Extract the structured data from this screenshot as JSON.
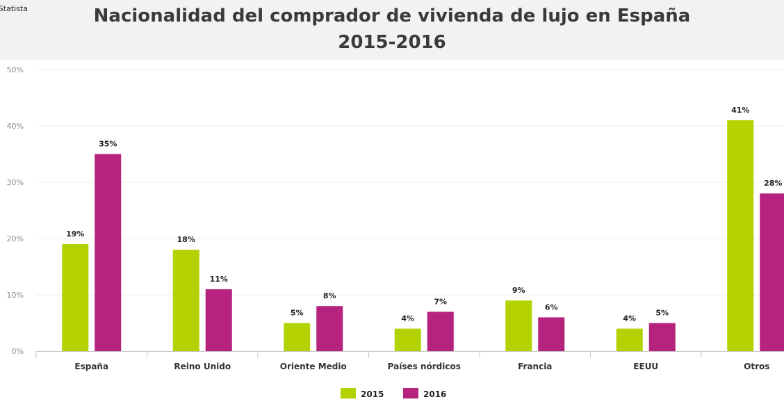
{
  "corner_text": "Statista",
  "chart_data": {
    "type": "bar",
    "title_line1": "Nacionalidad del comprador de vivienda de lujo en España",
    "title_line2": "2015-2016",
    "categories": [
      "España",
      "Reino Unido",
      "Oriente Medio",
      "Países nórdicos",
      "Francia",
      "EEUU",
      "Otros"
    ],
    "series": [
      {
        "name": "2015",
        "color": "#b3d200",
        "values": [
          19,
          18,
          5,
          4,
          9,
          4,
          41
        ]
      },
      {
        "name": "2016",
        "color": "#b5237e",
        "values": [
          35,
          11,
          8,
          7,
          6,
          5,
          28
        ]
      }
    ],
    "ylim": [
      0,
      50
    ],
    "yticks": [
      0,
      10,
      20,
      30,
      40,
      50
    ],
    "ytick_labels": [
      "0%",
      "10%",
      "20%",
      "30%",
      "40%",
      "50%"
    ],
    "data_labels_2015": [
      "19%",
      "18%",
      "5%",
      "4%",
      "9%",
      "4%",
      "41%"
    ],
    "data_labels_2016": [
      "35%",
      "11%",
      "8%",
      "7%",
      "6%",
      "5%",
      "28%"
    ],
    "xlabel": "",
    "ylabel": "",
    "legend_position": "bottom-center",
    "grid": true
  }
}
